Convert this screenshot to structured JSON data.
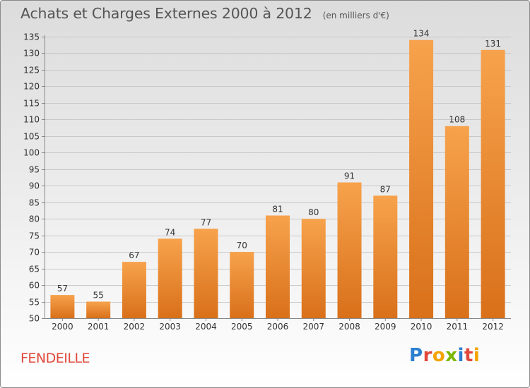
{
  "chart_data": {
    "type": "bar",
    "title": "Achats et Charges Externes 2000 à 2012",
    "subtitle": "(en milliers d'€)",
    "categories": [
      "2000",
      "2001",
      "2002",
      "2003",
      "2004",
      "2005",
      "2006",
      "2007",
      "2008",
      "2009",
      "2010",
      "2011",
      "2012"
    ],
    "values": [
      57,
      55,
      67,
      74,
      77,
      70,
      81,
      80,
      91,
      87,
      134,
      108,
      131
    ],
    "ylim": [
      50,
      135
    ],
    "yticks": [
      50,
      55,
      60,
      65,
      70,
      75,
      80,
      85,
      90,
      95,
      100,
      105,
      110,
      115,
      120,
      125,
      130,
      135
    ],
    "grid": true,
    "bar_color_light": "#f7a24c",
    "bar_color_dark": "#d9701a",
    "grid_color": "#c8c8c8"
  },
  "footer": {
    "commune": "FENDEILLE",
    "logo_letters": [
      {
        "ch": "P",
        "color": "#2b7fd0"
      },
      {
        "ch": "r",
        "color": "#e0483a"
      },
      {
        "ch": "o",
        "color": "#f4a300"
      },
      {
        "ch": "x",
        "color": "#7ab800"
      },
      {
        "ch": "i",
        "color": "#2b7fd0"
      },
      {
        "ch": "t",
        "color": "#e0483a"
      },
      {
        "ch": "i",
        "color": "#f4a300"
      }
    ]
  }
}
